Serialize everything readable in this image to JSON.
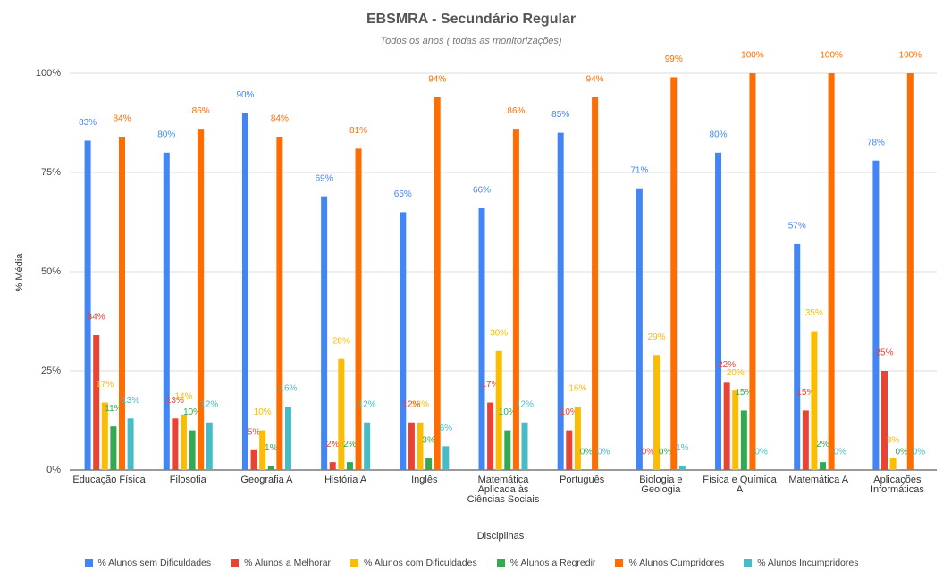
{
  "chart_data": {
    "type": "bar",
    "title": "EBSMRA - Secundário Regular",
    "subtitle": "Todos os anos ( todas as monitorizações)",
    "x_label": "Disciplinas",
    "y_label": "% Média",
    "categories": [
      "Educação Física",
      "Filosofia",
      "Geografia A",
      "História A",
      "Inglês",
      "Matemática Aplicada às Ciências Sociais",
      "Português",
      "Biologia e Geologia",
      "Física e Química A",
      "Matemática A",
      "Aplicações Informáticas"
    ],
    "series": [
      {
        "name": "% Alunos sem Dificuldades",
        "color": "#4285f4",
        "values": [
          83,
          80,
          90,
          69,
          65,
          66,
          85,
          71,
          80,
          57,
          78
        ],
        "value_labels": [
          "83%",
          "80%",
          "90%",
          "69%",
          "65%",
          "66%",
          "85%",
          "71%",
          "80%",
          "57%",
          "78%"
        ]
      },
      {
        "name": "% Alunos a Melhorar",
        "color": "#ea4335",
        "values": [
          34,
          13,
          5,
          2,
          12,
          17,
          10,
          0,
          22,
          15,
          25
        ],
        "value_labels": [
          "34%",
          "13%",
          "5%",
          "2%",
          "12%",
          "17%",
          "10%",
          "0%",
          "22%",
          "15%",
          "25%"
        ]
      },
      {
        "name": "% Alunos com Dificuldades",
        "color": "#fbbc04",
        "values": [
          17,
          14,
          10,
          28,
          12,
          30,
          16,
          29,
          20,
          35,
          3
        ],
        "value_labels": [
          "17%",
          "14%",
          "10%",
          "28%",
          "12%",
          "30%",
          "16%",
          "29%",
          "20%",
          "35%",
          "3%"
        ]
      },
      {
        "name": "% Alunos a Regredir",
        "color": "#34a853",
        "values": [
          11,
          10,
          1,
          2,
          3,
          10,
          0,
          0,
          15,
          2,
          0
        ],
        "value_labels": [
          "11%",
          "10%",
          "1%",
          "2%",
          "3%",
          "10%",
          "0%",
          "0%",
          "15%",
          "2%",
          "0%"
        ]
      },
      {
        "name": "% Alunos Cumpridores",
        "color": "#ff6d01",
        "values": [
          84,
          86,
          84,
          81,
          94,
          86,
          94,
          99,
          100,
          100,
          100
        ],
        "value_labels": [
          "84%",
          "86%",
          "84%",
          "81%",
          "94%",
          "86%",
          "94%",
          "99%",
          "100%",
          "100%",
          "100%"
        ]
      },
      {
        "name": "% Alunos Incumpridores",
        "color": "#46bdc6",
        "values": [
          13,
          12,
          16,
          12,
          6,
          12,
          0,
          1,
          0,
          0,
          0
        ],
        "value_labels": [
          "13%",
          "12%",
          "16%",
          "12%",
          "6%",
          "12%",
          "0%",
          "1%",
          "0%",
          "0%",
          "0%"
        ]
      }
    ],
    "ylim": [
      0,
      100
    ],
    "yticks": [
      {
        "value": 0,
        "label": "0%"
      },
      {
        "value": 25,
        "label": "25%"
      },
      {
        "value": 50,
        "label": "50%"
      },
      {
        "value": 75,
        "label": "75%"
      },
      {
        "value": 100,
        "label": "100%"
      }
    ],
    "grid": true
  }
}
